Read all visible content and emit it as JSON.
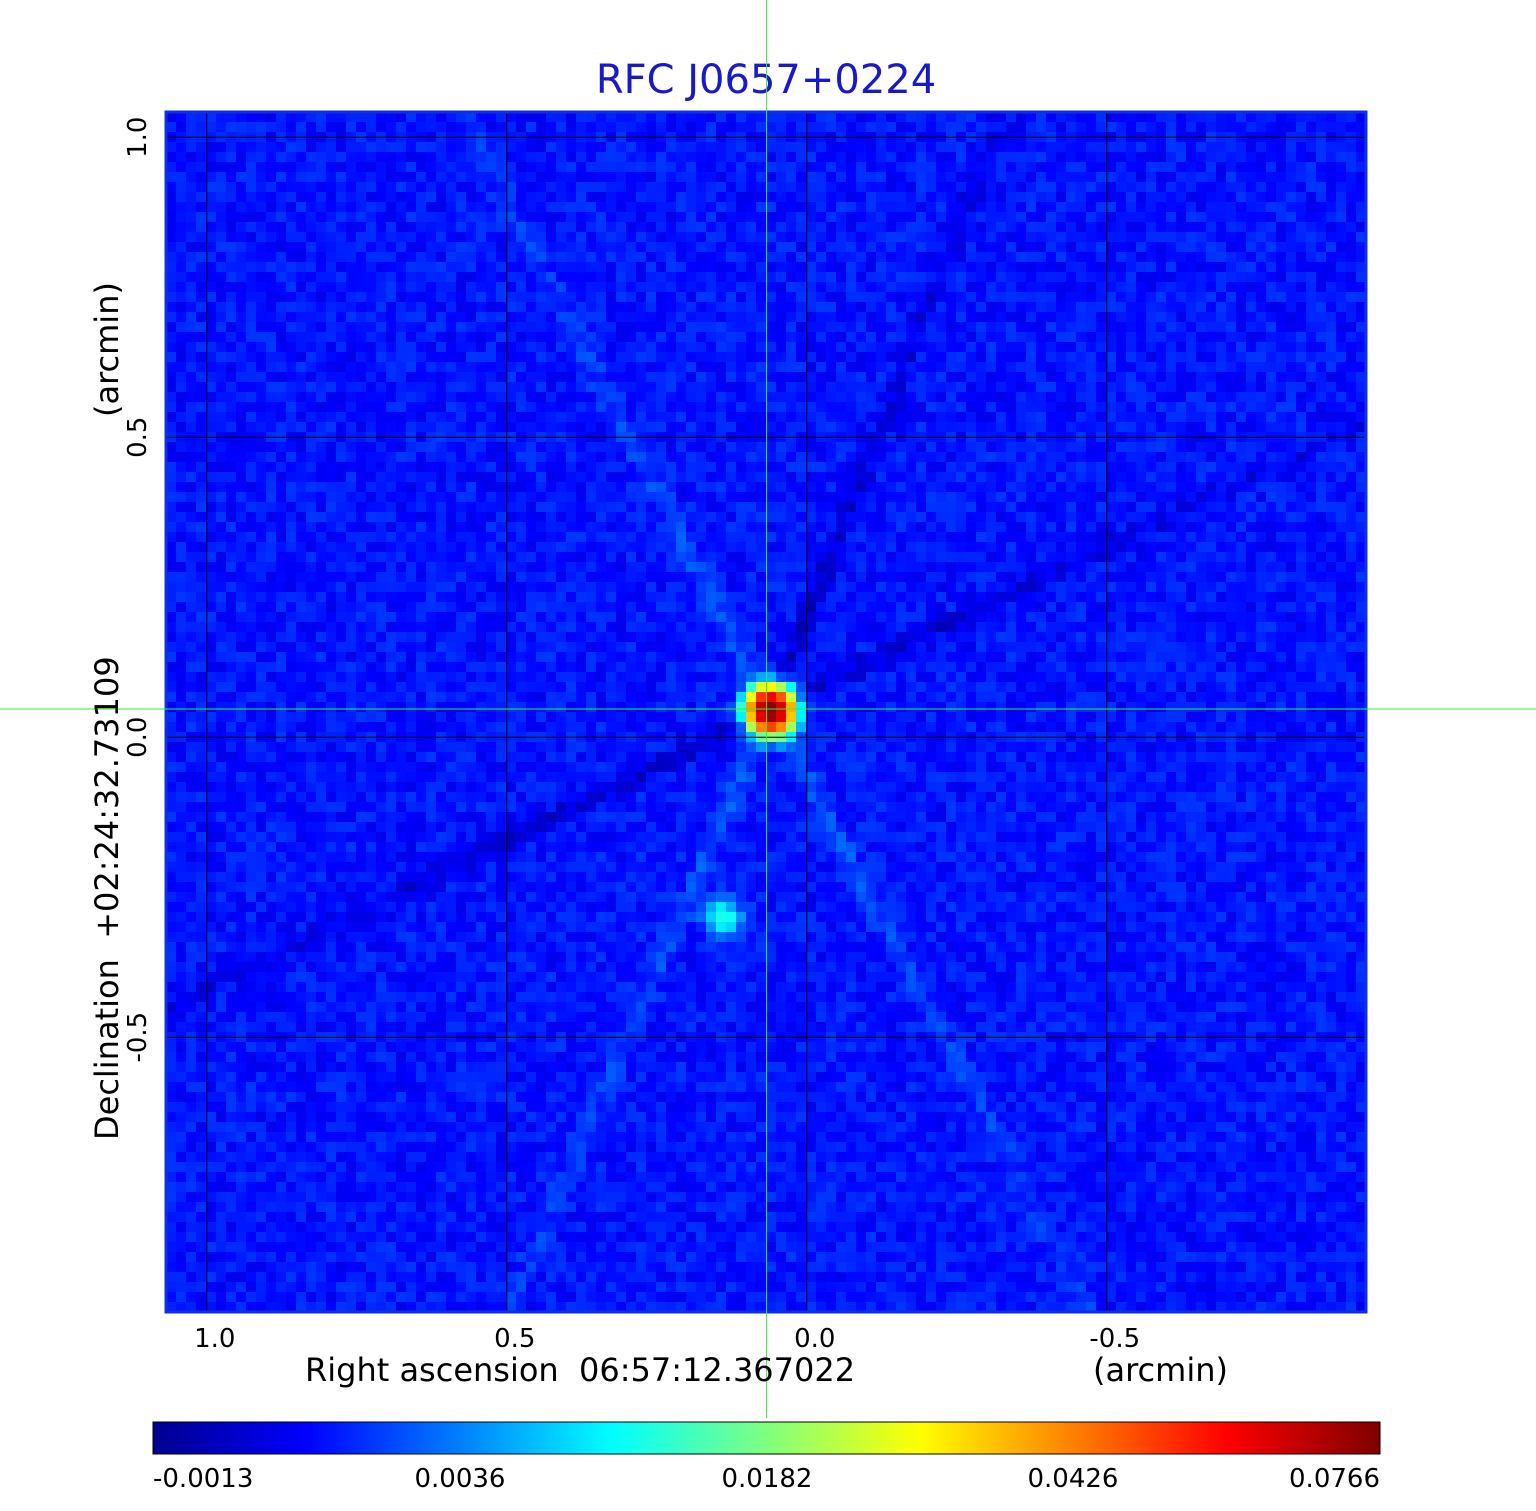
{
  "chart_data": {
    "type": "heatmap",
    "title": "RFC J0657+0224",
    "xlabel": "Right ascension  06:57:12.367022",
    "xunit": "(arcmin)",
    "ylabel": "Declination  +02:24:32.73109",
    "yunit": "(arcmin)",
    "x_ticks": [
      "1.0",
      "0.5",
      "0.0",
      "-0.5"
    ],
    "y_ticks": [
      "1.0",
      "0.5",
      "0.0",
      "-0.5"
    ],
    "x_tick_values": [
      1.0,
      0.5,
      0.0,
      -0.5
    ],
    "y_tick_values": [
      1.0,
      0.5,
      0.0,
      -0.5
    ],
    "xlim": [
      1.068,
      -0.932
    ],
    "ylim": [
      -0.958,
      1.042
    ],
    "x_reversed": true,
    "grid": true,
    "crosshair": {
      "x": 0.067,
      "y": 0.047,
      "color": "#33ee33"
    },
    "colormap": "jet",
    "colorbar_ticks": [
      "-0.0013",
      "0.0036",
      "0.0182",
      "0.0426",
      "0.0766"
    ],
    "colorbar_tick_values": [
      -0.0013,
      0.0036,
      0.0182,
      0.0426,
      0.0766
    ],
    "colorbar_range": [
      -0.0013,
      0.0766
    ],
    "peak": {
      "x": 0.06,
      "y": 0.045,
      "value": 0.0766
    },
    "secondary_feature": {
      "x": 0.14,
      "y": -0.3,
      "value": 0.006
    },
    "background_level": 0.001
  },
  "colors": {
    "title": "#1818cc",
    "grid": "#000000",
    "crosshair": "#33ee33",
    "frame": "#1030e0"
  }
}
